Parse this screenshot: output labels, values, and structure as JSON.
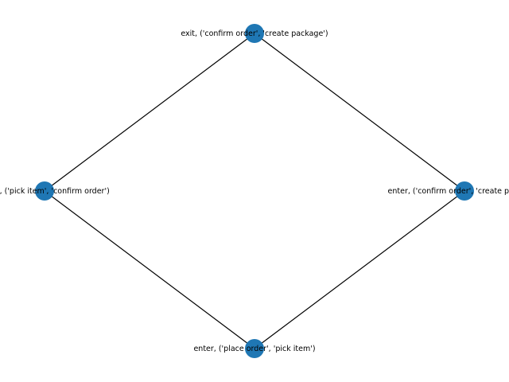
{
  "diagram": {
    "type": "directed-graph",
    "node_color": "#1f77b4",
    "edge_color": "#000000",
    "nodes": [
      {
        "id": "n_top",
        "label": "exit, ('confirm order', 'create package')"
      },
      {
        "id": "n_left",
        "label": "enter, ('pick item', 'confirm order')"
      },
      {
        "id": "n_right",
        "label": "enter, ('confirm order', 'create package')"
      },
      {
        "id": "n_bottom",
        "label": "enter, ('place order', 'pick item')"
      }
    ],
    "edges": [
      {
        "from": "n_bottom",
        "to": "n_left"
      },
      {
        "from": "n_bottom",
        "to": "n_right"
      },
      {
        "from": "n_left",
        "to": "n_top"
      },
      {
        "from": "n_right",
        "to": "n_top"
      }
    ]
  }
}
